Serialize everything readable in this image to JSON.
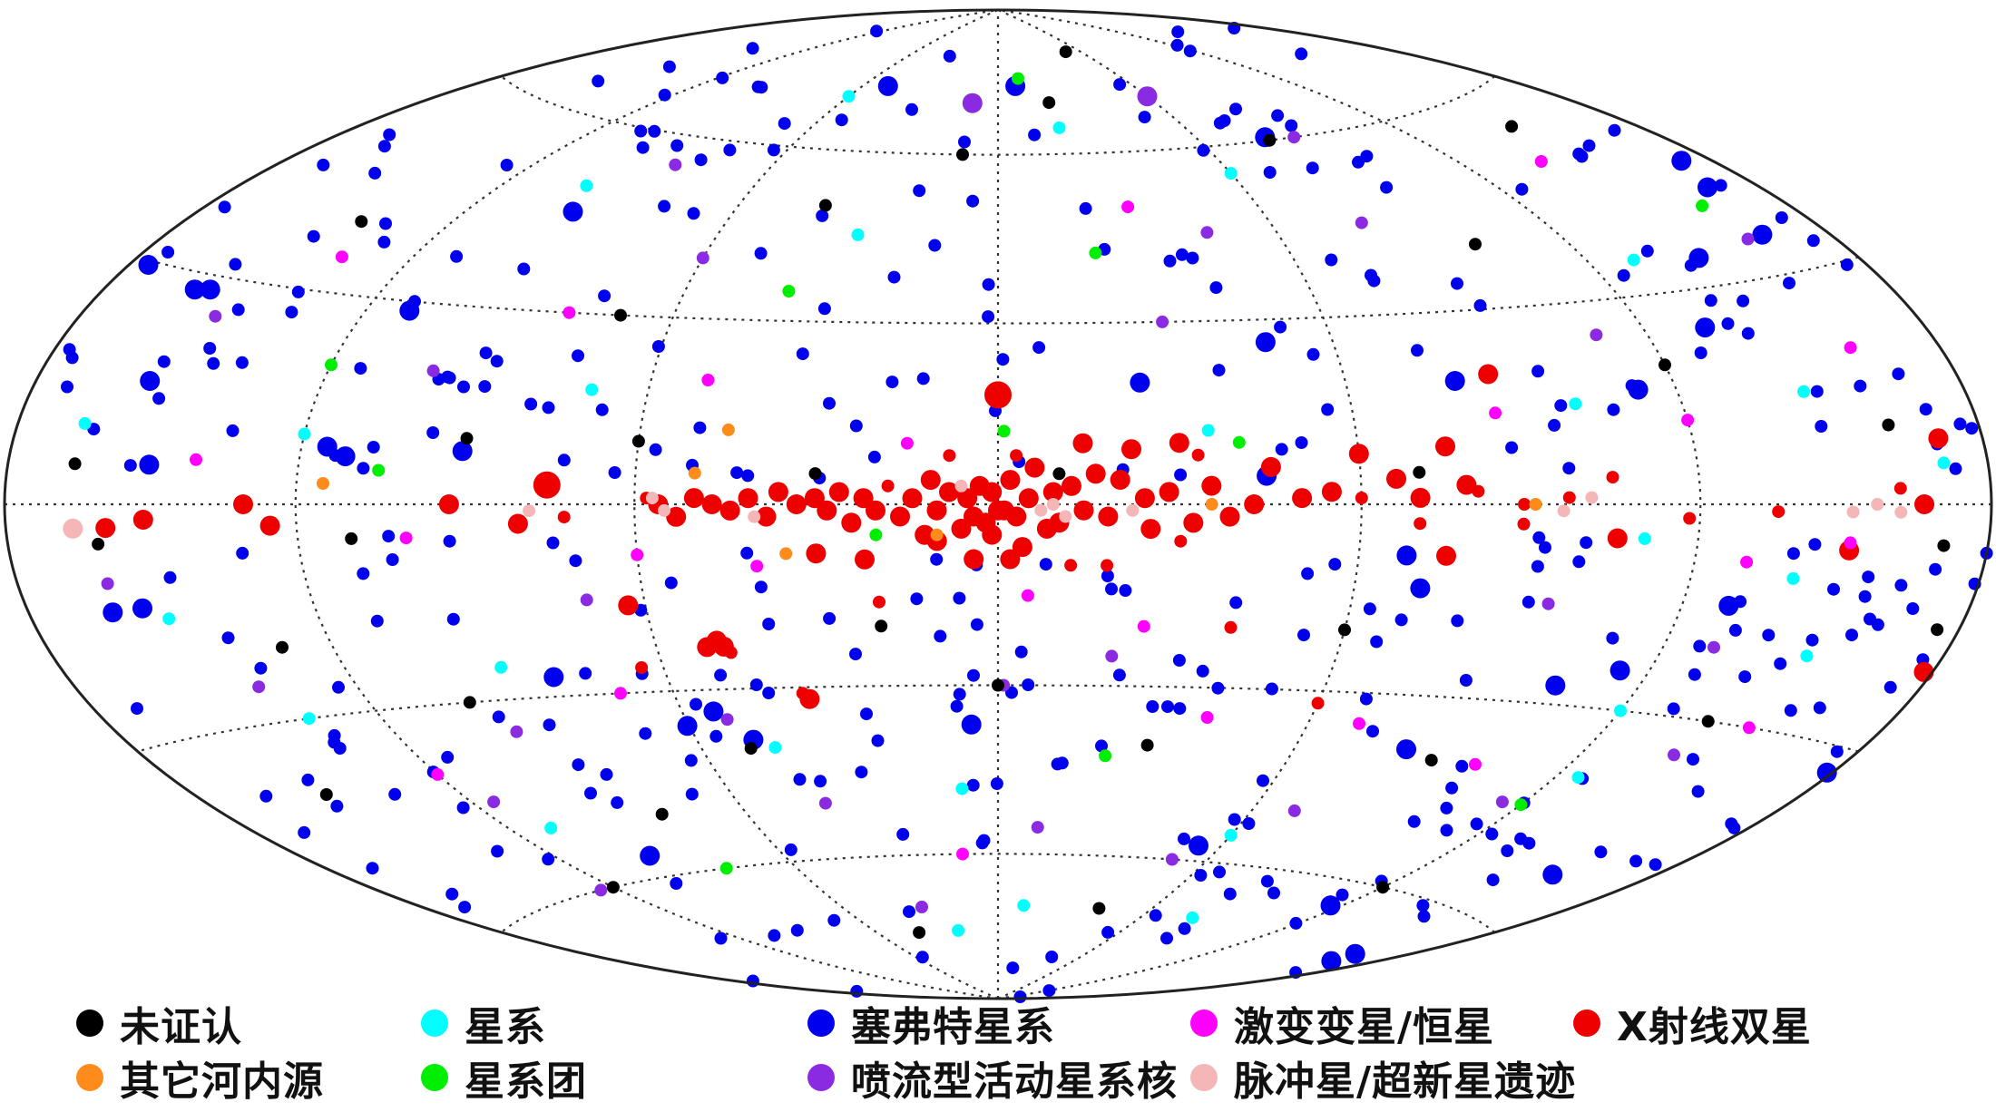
{
  "chart_data": {
    "type": "scatter",
    "projection": "hammer-aitoff all-sky map, galactic coordinates",
    "x_range_deg": [
      -180,
      180
    ],
    "y_range_deg": [
      -90,
      90
    ],
    "grid": true,
    "legend_placement": "bottom",
    "marker_size_meaning": "larger markers indicate brighter sources (schematic)",
    "title": "",
    "xlabel": "",
    "ylabel": "",
    "series": [
      {
        "name": "未证认",
        "color": "#000000"
      },
      {
        "name": "其它河内源",
        "color": "#ff8c1a"
      },
      {
        "name": "星系",
        "color": "#00ffff"
      },
      {
        "name": "星系团",
        "color": "#00ee00"
      },
      {
        "name": "塞弗特星系",
        "color": "#0000ee"
      },
      {
        "name": "喷流型活动星系核",
        "color": "#8a2be2"
      },
      {
        "name": "激变变星/恒星",
        "color": "#ff00ff"
      },
      {
        "name": "脉冲星/超新星遗迹",
        "color": "#f4b6b6"
      },
      {
        "name": "X射线双星",
        "color": "#ee0000"
      }
    ],
    "points": [
      [
        -178,
        -20,
        "X射线双星",
        2
      ],
      [
        -170,
        8,
        "X射线双星",
        2
      ],
      [
        -165,
        0,
        "X射线双星",
        2
      ],
      [
        -160,
        2,
        "X射线双星",
        1
      ],
      [
        -135,
        -1,
        "X射线双星",
        1
      ],
      [
        -118,
        -2,
        "X射线双星",
        1
      ],
      [
        -105,
        -5,
        "X射线双星",
        2
      ],
      [
        -104,
        4,
        "X射线双星",
        1
      ],
      [
        -96,
        1,
        "X射线双星",
        1
      ],
      [
        -88,
        0,
        "X射线双星",
        1
      ],
      [
        -80,
        2,
        "X射线双星",
        1
      ],
      [
        -75,
        -8,
        "X射线双星",
        2
      ],
      [
        -70,
        1,
        "X射线双星",
        2
      ],
      [
        -66,
        4,
        "X射线双星",
        2
      ],
      [
        -60,
        1,
        "X射线双星",
        1
      ],
      [
        -55,
        2,
        "X射线双星",
        2
      ],
      [
        -50,
        1,
        "X射线双星",
        2
      ],
      [
        -45,
        6,
        "X射线双星",
        2
      ],
      [
        -42,
        0,
        "X射线双星",
        2
      ],
      [
        -38,
        -2,
        "X射线双星",
        2
      ],
      [
        -35,
        3,
        "X射线双星",
        2
      ],
      [
        -32,
        -3,
        "X射线双星",
        2
      ],
      [
        -30,
        10,
        "X射线双星",
        2
      ],
      [
        -28,
        2,
        "X射线双星",
        2
      ],
      [
        -25,
        -4,
        "X射线双星",
        2
      ],
      [
        -24,
        1,
        "X射线双星",
        2
      ],
      [
        -20,
        4,
        "X射线双星",
        2
      ],
      [
        -18,
        -2,
        "X射线双星",
        2
      ],
      [
        -16,
        5,
        "X射线双星",
        2
      ],
      [
        -14,
        -1,
        "X射线双星",
        2
      ],
      [
        -12,
        3,
        "X射线双星",
        2
      ],
      [
        -10,
        -3,
        "X射线双星",
        2
      ],
      [
        -9,
        2,
        "X射线双星",
        2
      ],
      [
        -8,
        -4,
        "X射线双星",
        2
      ],
      [
        -6,
        6,
        "X射线双星",
        2
      ],
      [
        -5,
        1,
        "X射线双星",
        2
      ],
      [
        -4,
        -7,
        "X射线双星",
        2
      ],
      [
        -3,
        -2,
        "X射线双星",
        2
      ],
      [
        -2,
        4,
        "X射线双星",
        2
      ],
      [
        -1,
        -1,
        "X射线双星",
        2
      ],
      [
        0,
        18,
        "X射线双星",
        3
      ],
      [
        0,
        -1,
        "X射线双星",
        2
      ],
      [
        1,
        2,
        "X射线双星",
        2
      ],
      [
        1,
        -5,
        "X射线双星",
        2
      ],
      [
        2,
        -3,
        "X射线双星",
        2
      ],
      [
        3,
        3,
        "X射线双星",
        2
      ],
      [
        4,
        -2,
        "X射线双星",
        2
      ],
      [
        5,
        1,
        "X射线双星",
        2
      ],
      [
        6,
        -4,
        "X射线双星",
        2
      ],
      [
        8,
        2,
        "X射线双星",
        2
      ],
      [
        10,
        -1,
        "X射线双星",
        2
      ],
      [
        11,
        4,
        "X射线双星",
        2
      ],
      [
        12,
        -5,
        "X射线双星",
        2
      ],
      [
        14,
        1,
        "X射线双星",
        2
      ],
      [
        16,
        -2,
        "X射线双星",
        2
      ],
      [
        18,
        3,
        "X射线双星",
        1
      ],
      [
        20,
        -1,
        "X射线双星",
        2
      ],
      [
        22,
        1,
        "X射线双星",
        2
      ],
      [
        24,
        -3,
        "X射线双星",
        2
      ],
      [
        26,
        2,
        "X射线双星",
        2
      ],
      [
        28,
        -1,
        "X射线双星",
        2
      ],
      [
        30,
        1,
        "X射线双星",
        2
      ],
      [
        33,
        0,
        "X射线双星",
        2
      ],
      [
        36,
        2,
        "X射线双星",
        2
      ],
      [
        38,
        -2,
        "X射线双星",
        2
      ],
      [
        41,
        1,
        "X射线双星",
        2
      ],
      [
        44,
        -1,
        "X射线双星",
        2
      ],
      [
        47,
        0,
        "X射线双星",
        2
      ],
      [
        50,
        1,
        "X射线双星",
        2
      ],
      [
        53,
        -2,
        "X射线双星",
        2
      ],
      [
        56,
        0,
        "X射线双星",
        2
      ],
      [
        58,
        1,
        "X射线双星",
        1
      ],
      [
        -2,
        -9,
        "X射线双星",
        2
      ],
      [
        4,
        -9,
        "X射线双星",
        2
      ],
      [
        -12,
        -10,
        "X射线双星",
        1
      ],
      [
        -18,
        -10,
        "X射线双星",
        1
      ],
      [
        10,
        -6,
        "X射线双星",
        2
      ],
      [
        22,
        -9,
        "X射线双星",
        2
      ],
      [
        -30,
        -6,
        "X射线双星",
        1
      ],
      [
        48,
        -23,
        "X射线双星",
        2
      ],
      [
        49,
        -22,
        "X射线双星",
        2
      ],
      [
        51,
        -23,
        "X射线双星",
        2
      ],
      [
        47,
        -24,
        "X射线双星",
        1
      ],
      [
        35,
        -32,
        "X射线双星",
        2
      ],
      [
        36,
        -31,
        "X射线双星",
        1
      ],
      [
        63,
        -16,
        "X射线双星",
        2
      ],
      [
        64,
        -26,
        "X射线双星",
        1
      ],
      [
        -75,
        9,
        "X射线双星",
        2
      ],
      [
        -78,
        3,
        "X射线双星",
        2
      ],
      [
        -60,
        8,
        "X射线双星",
        2
      ],
      [
        -70,
        -3,
        "X射线双星",
        1
      ],
      [
        -14,
        10,
        "X射线双星",
        2
      ],
      [
        -22,
        9,
        "X射线双星",
        2
      ],
      [
        -3,
        8,
        "X射线双星",
        1
      ],
      [
        8,
        8,
        "X射线双星",
        1
      ],
      [
        75,
        3,
        "X射线双星",
        3
      ],
      [
        80,
        -3,
        "X射线双星",
        2
      ],
      [
        72,
        -2,
        "X射线双星",
        1
      ],
      [
        92,
        0,
        "X射线双星",
        2
      ],
      [
        125,
        -3,
        "X射线双星",
        2
      ],
      [
        130,
        0,
        "X射线双星",
        2
      ],
      [
        150,
        -2,
        "X射线双星",
        2
      ],
      [
        158,
        -3,
        "X射线双星",
        2
      ],
      [
        -150,
        -6,
        "X射线双星",
        2
      ],
      [
        -86,
        20,
        "X射线双星",
        2
      ],
      [
        -60,
        -32,
        "X射线双星",
        1
      ],
      [
        -40,
        -20,
        "X射线双星",
        1
      ],
      [
        30,
        -8,
        "X射线双星",
        2
      ],
      [
        20,
        -16,
        "X射线双星",
        1
      ],
      [
        -88,
        -3,
        "X射线双星",
        1
      ],
      [
        -33,
        8,
        "X射线双星",
        1
      ],
      [
        -100,
        1,
        "脉冲星/超新星遗迹",
        1
      ],
      [
        -95,
        -1,
        "脉冲星/超新星遗迹",
        1
      ],
      [
        -160,
        -1,
        "脉冲星/超新星遗迹",
        1
      ],
      [
        -155,
        0,
        "脉冲星/超新星遗迹",
        1
      ],
      [
        -150,
        -1,
        "脉冲星/超新星遗迹",
        1
      ],
      [
        -11,
        -2,
        "脉冲星/超新星遗迹",
        1
      ],
      [
        -9,
        0,
        "脉冲星/超新星遗迹",
        1
      ],
      [
        -7,
        -1,
        "脉冲星/超新星遗迹",
        1
      ],
      [
        6,
        3,
        "脉冲星/超新星遗迹",
        1
      ],
      [
        40,
        -2,
        "脉冲星/超新星遗迹",
        1
      ],
      [
        55,
        -1,
        "脉冲星/超新星遗迹",
        1
      ],
      [
        57,
        1,
        "脉冲星/超新星遗迹",
        1
      ],
      [
        78,
        -1,
        "脉冲星/超新星遗迹",
        1
      ],
      [
        165,
        -3,
        "脉冲星/超新星遗迹",
        2
      ],
      [
        -22,
        -1,
        "脉冲星/超新星遗迹",
        1
      ],
      [
        -130,
        -8,
        "激变变星/恒星",
        1
      ],
      [
        -150,
        -5,
        "激变变星/恒星",
        1
      ],
      [
        -120,
        12,
        "激变变星/恒星",
        1
      ],
      [
        -85,
        14,
        "激变变星/恒星",
        1
      ],
      [
        -25,
        -20,
        "激变变星/恒星",
        1
      ],
      [
        -40,
        -35,
        "激变变星/恒星",
        1
      ],
      [
        15,
        10,
        "激变变星/恒星",
        1
      ],
      [
        60,
        -8,
        "激变变星/恒星",
        1
      ],
      [
        50,
        20,
        "激变变星/恒星",
        1
      ],
      [
        -30,
        50,
        "激变变星/恒星",
        1
      ],
      [
        80,
        30,
        "激变变星/恒星",
        1
      ],
      [
        -140,
        50,
        "激变变星/恒星",
        1
      ],
      [
        100,
        -5,
        "激变变星/恒星",
        1
      ],
      [
        -70,
        -35,
        "激变变星/恒星",
        1
      ],
      [
        10,
        -60,
        "激变变星/恒星",
        1
      ],
      [
        -150,
        -30,
        "激变变星/恒星",
        1
      ],
      [
        120,
        -40,
        "激变变星/恒星",
        1
      ],
      [
        -100,
        -40,
        "激变变星/恒星",
        1
      ],
      [
        40,
        -10,
        "激变变星/恒星",
        1
      ],
      [
        135,
        35,
        "激变变星/恒星",
        1
      ],
      [
        -160,
        20,
        "激变变星/恒星",
        1
      ],
      [
        -5,
        -15,
        "激变变星/恒星",
        1
      ],
      [
        70,
        -30,
        "激变变星/恒星",
        1
      ],
      [
        140,
        6,
        "激变变星/恒星",
        1
      ],
      [
        -20,
        -25,
        "喷流型活动星系核",
        1
      ],
      [
        -60,
        70,
        "喷流型活动星系核",
        2
      ],
      [
        -80,
        45,
        "喷流型活动星系核",
        1
      ],
      [
        -110,
        25,
        "喷流型活动星系核",
        1
      ],
      [
        -95,
        -15,
        "喷流型活动星系核",
        1
      ],
      [
        -10,
        -55,
        "喷流型活动星系核",
        1
      ],
      [
        -50,
        -60,
        "喷流型活动星系核",
        1
      ],
      [
        40,
        -50,
        "喷流型活动星系核",
        1
      ],
      [
        70,
        -15,
        "喷流型活动星系核",
        1
      ],
      [
        100,
        20,
        "喷流型活动星系核",
        1
      ],
      [
        140,
        -25,
        "喷流型活动星系核",
        1
      ],
      [
        10,
        70,
        "喷流型活动星系核",
        2
      ],
      [
        -30,
        30,
        "喷流型活动星系核",
        1
      ],
      [
        60,
        40,
        "喷流型活动星系核",
        1
      ],
      [
        -130,
        -20,
        "喷流型活动星系核",
        1
      ],
      [
        115,
        -45,
        "喷流型活动星系核",
        1
      ],
      [
        30,
        -70,
        "喷流型活动星系核",
        1
      ],
      [
        -160,
        35,
        "喷流型活动星系核",
        1
      ],
      [
        150,
        25,
        "喷流型活动星系核",
        1
      ],
      [
        -70,
        -50,
        "喷流型活动星系核",
        1
      ],
      [
        85,
        55,
        "喷流型活动星系核",
        1
      ],
      [
        -45,
        45,
        "喷流型活动星系核",
        1
      ],
      [
        125,
        -60,
        "喷流型活动星系核",
        1
      ],
      [
        -115,
        -45,
        "喷流型活动星系核",
        1
      ],
      [
        -1,
        -30,
        "喷流型活动星系核",
        1
      ],
      [
        52,
        -35,
        "喷流型活动星系核",
        1
      ],
      [
        -88,
        60,
        "喷流型活动星系核",
        1
      ],
      [
        95,
        -35,
        "喷流型活动星系核",
        1
      ],
      [
        -140,
        -35,
        "喷流型活动星系核",
        1
      ],
      [
        160,
        -10,
        "喷流型活动星系核",
        1
      ],
      [
        -170,
        5,
        "星系",
        1
      ],
      [
        -140,
        -10,
        "星系",
        1
      ],
      [
        -120,
        -30,
        "星系",
        1
      ],
      [
        -100,
        15,
        "星系",
        1
      ],
      [
        -60,
        55,
        "星系",
        1
      ],
      [
        -20,
        65,
        "星系",
        1
      ],
      [
        30,
        45,
        "星系",
        1
      ],
      [
        60,
        70,
        "星系",
        1
      ],
      [
        100,
        50,
        "星系",
        1
      ],
      [
        120,
        10,
        "星系",
        1
      ],
      [
        150,
        -15,
        "星系",
        1
      ],
      [
        90,
        -25,
        "星系",
        1
      ],
      [
        45,
        -40,
        "星系",
        1
      ],
      [
        -10,
        -70,
        "星系",
        1
      ],
      [
        -60,
        -55,
        "星系",
        1
      ],
      [
        -150,
        -20,
        "星系",
        1
      ],
      [
        -130,
        35,
        "星系",
        1
      ],
      [
        110,
        -50,
        "星系",
        1
      ],
      [
        -80,
        -70,
        "星系",
        1
      ],
      [
        20,
        -75,
        "星系",
        1
      ],
      [
        -110,
        -5,
        "星系",
        1
      ],
      [
        -145,
        15,
        "星系",
        1
      ],
      [
        165,
        10,
        "星系",
        1
      ],
      [
        135,
        -30,
        "星系",
        1
      ],
      [
        -35,
        12,
        "星系",
        1
      ],
      [
        8,
        -48,
        "星系",
        1
      ],
      [
        70,
        18,
        "星系",
        1
      ],
      [
        -125,
        -40,
        "星系",
        1
      ],
      [
        -10,
        75,
        "星系团",
        1
      ],
      [
        -20,
        42,
        "星系团",
        1
      ],
      [
        -1,
        12,
        "星系团",
        1
      ],
      [
        20,
        -5,
        "星系团",
        1
      ],
      [
        40,
        35,
        "星系团",
        1
      ],
      [
        120,
        20,
        "星系团",
        1
      ],
      [
        -120,
        -45,
        "星系团",
        1
      ],
      [
        -160,
        40,
        "星系团",
        1
      ],
      [
        80,
        -60,
        "星系团",
        1
      ],
      [
        -40,
        10,
        "星系团",
        1
      ],
      [
        105,
        5,
        "星系团",
        1
      ],
      [
        -22,
        -42,
        "星系团",
        1
      ],
      [
        10,
        -5,
        "其它河内源",
        1
      ],
      [
        50,
        5,
        "其它河内源",
        1
      ],
      [
        35,
        -8,
        "其它河内源",
        1
      ],
      [
        115,
        3,
        "其它河内源",
        1
      ],
      [
        -90,
        0,
        "其它河内源",
        1
      ],
      [
        -35,
        0,
        "其它河内源",
        1
      ],
      [
        45,
        12,
        "其它河内源",
        1
      ],
      [
        -170,
        -5,
        "未证认",
        1
      ],
      [
        -160,
        10,
        "未证认",
        1
      ],
      [
        -140,
        -30,
        "未证认",
        1
      ],
      [
        -120,
        20,
        "未证认",
        1
      ],
      [
        -100,
        40,
        "未证认",
        1
      ],
      [
        -80,
        60,
        "未证认",
        1
      ],
      [
        -50,
        80,
        "未证认",
        1
      ],
      [
        -20,
        70,
        "未证认",
        1
      ],
      [
        10,
        60,
        "未证认",
        1
      ],
      [
        40,
        50,
        "未证认",
        1
      ],
      [
        70,
        30,
        "未证认",
        1
      ],
      [
        90,
        10,
        "未证认",
        1
      ],
      [
        110,
        -5,
        "未证认",
        1
      ],
      [
        130,
        -20,
        "未证认",
        1
      ],
      [
        150,
        -40,
        "未证认",
        1
      ],
      [
        120,
        -60,
        "未证认",
        1
      ],
      [
        80,
        -50,
        "未证认",
        1
      ],
      [
        50,
        -40,
        "未证认",
        1
      ],
      [
        20,
        -20,
        "未证认",
        1
      ],
      [
        0,
        -30,
        "未证认",
        1
      ],
      [
        -30,
        -40,
        "未证认",
        1
      ],
      [
        -60,
        -20,
        "未证认",
        1
      ],
      [
        -90,
        -40,
        "未证认",
        1
      ],
      [
        -120,
        -60,
        "未证认",
        1
      ],
      [
        -10,
        5,
        "未证认",
        1
      ],
      [
        30,
        5,
        "未证认",
        1
      ],
      [
        60,
        10,
        "未证认",
        1
      ],
      [
        -70,
        5,
        "未证认",
        1
      ],
      [
        160,
        -5,
        "未证认",
        1
      ],
      [
        -150,
        55,
        "未证认",
        1
      ],
      [
        140,
        40,
        "未证认",
        1
      ],
      [
        100,
        -30,
        "未证认",
        1
      ],
      [
        -40,
        -70,
        "未证认",
        1
      ],
      [
        40,
        -75,
        "未证认",
        1
      ],
      [
        165,
        5,
        "未证认",
        1
      ],
      [
        -175,
        -15,
        "未证认",
        1
      ]
    ]
  },
  "legend": [
    {
      "label": "未证认",
      "color": "#000000"
    },
    {
      "label": "星系",
      "color": "#00ffff"
    },
    {
      "label": "塞弗特星系",
      "color": "#0000ee"
    },
    {
      "label": "激变变星/恒星",
      "color": "#ff00ff"
    },
    {
      "label": "X射线双星",
      "color": "#ee0000"
    },
    {
      "label": "其它河内源",
      "color": "#ff8c1a"
    },
    {
      "label": "星系团",
      "color": "#00ee00"
    },
    {
      "label": "喷流型活动星系核",
      "color": "#8a2be2"
    },
    {
      "label": "脉冲星/超新星遗迹",
      "color": "#f4b6b6"
    }
  ]
}
